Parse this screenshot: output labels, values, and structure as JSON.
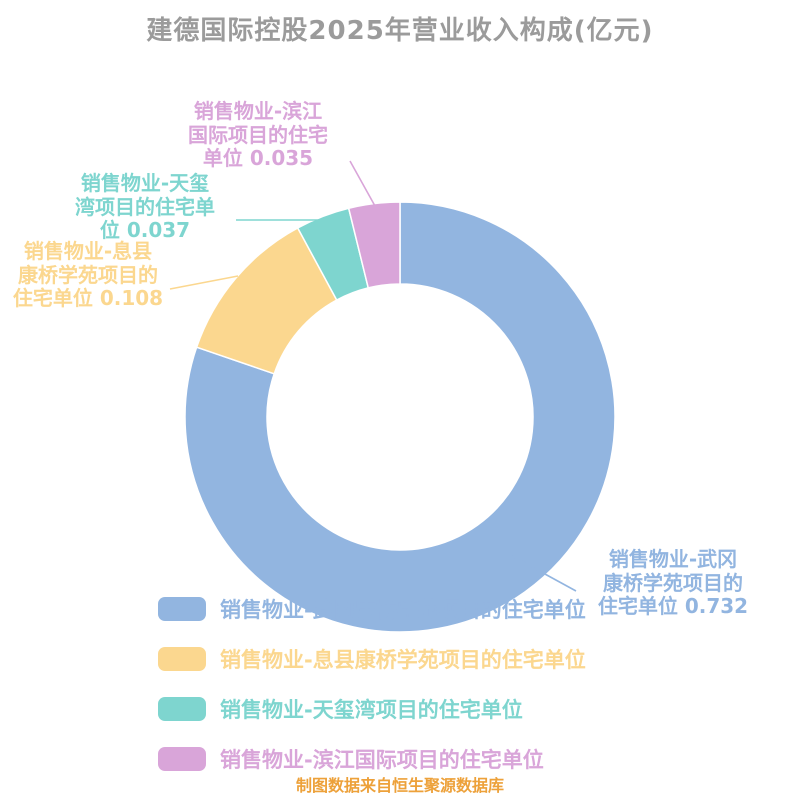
{
  "chart_data": {
    "type": "pie",
    "donut": true,
    "title": "建德国际控股2025年营业收入构成(亿元)",
    "legend_position": "bottom-left",
    "grid": false,
    "unit": "亿元",
    "series": [
      {
        "name": "销售物业-武冈康桥学苑项目的住宅单位",
        "value": 0.732,
        "color": "#92b5e0",
        "callout": "销售物业-武冈\n康桥学苑项目的\n住宅单位 0.732"
      },
      {
        "name": "销售物业-息县康桥学苑项目的住宅单位",
        "value": 0.108,
        "color": "#fbd78f",
        "callout": "销售物业-息县\n康桥学苑项目的\n住宅单位 0.108"
      },
      {
        "name": "销售物业-天玺湾项目的住宅单位",
        "value": 0.037,
        "color": "#7ed5cf",
        "callout": "销售物业-天玺\n湾项目的住宅单\n位 0.037"
      },
      {
        "name": "销售物业-滨江国际项目的住宅单位",
        "value": 0.035,
        "color": "#d9a5d9",
        "callout": "销售物业-滨江\n国际项目的住宅\n单位 0.035"
      }
    ]
  },
  "source_note": "制图数据来自恒生聚源数据库"
}
